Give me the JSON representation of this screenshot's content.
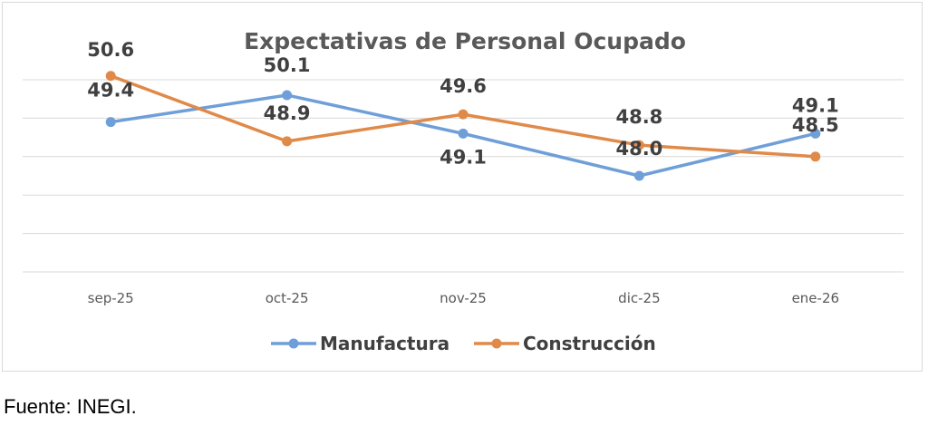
{
  "chart_data": {
    "type": "line",
    "title": "Expectativas de Personal Ocupado",
    "categories": [
      "sep-25",
      "oct-25",
      "nov-25",
      "dic-25",
      "ene-26"
    ],
    "series": [
      {
        "name": "Manufactura",
        "color": "#6f9fd8",
        "values": [
          49.4,
          50.1,
          49.1,
          48.0,
          49.1
        ],
        "labels": [
          "49.4",
          "50.1",
          "49.1",
          "48.0",
          "49.1"
        ]
      },
      {
        "name": "Construcción",
        "color": "#e08a4a",
        "values": [
          50.6,
          48.9,
          49.6,
          48.8,
          48.5
        ],
        "labels": [
          "50.6",
          "48.9",
          "49.6",
          "48.8",
          "48.5"
        ]
      }
    ],
    "ylim": [
      45.5,
      50.5
    ],
    "gridlines": true,
    "legend": "bottom"
  },
  "footer": {
    "source": "Fuente: INEGI."
  }
}
